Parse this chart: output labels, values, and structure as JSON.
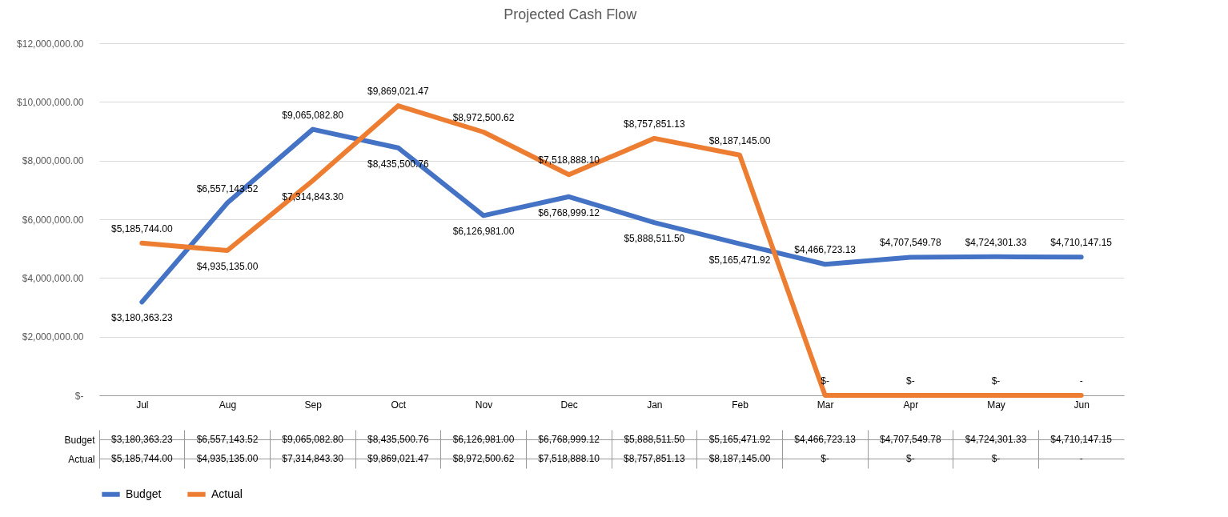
{
  "chart_data": {
    "type": "line",
    "title": "Projected Cash Flow",
    "categories": [
      "Jul",
      "Aug",
      "Sep",
      "Oct",
      "Nov",
      "Dec",
      "Jan",
      "Feb",
      "Mar",
      "Apr",
      "May",
      "Jun"
    ],
    "series": [
      {
        "name": "Budget",
        "color": "#4472c4",
        "values": [
          3180363.23,
          6557143.52,
          9065082.8,
          8435500.76,
          6126981.0,
          6768999.12,
          5888511.5,
          5165471.92,
          4466723.13,
          4707549.78,
          4724301.33,
          4710147.15
        ],
        "value_labels": [
          "$3,180,363.23",
          "$6,557,143.52",
          "$9,065,082.80",
          "$8,435,500.76",
          "$6,126,981.00",
          "$6,768,999.12",
          "$5,888,511.50",
          "$5,165,471.92",
          "$4,466,723.13",
          "$4,707,549.78",
          "$4,724,301.33",
          "$4,710,147.15"
        ]
      },
      {
        "name": "Actual",
        "color": "#ed7d31",
        "values": [
          5185744.0,
          4935135.0,
          7314843.3,
          9869021.47,
          8972500.62,
          7518888.1,
          8757851.13,
          8187145.0,
          0,
          0,
          0,
          0
        ],
        "value_labels": [
          "$5,185,744.00",
          "$4,935,135.00",
          "$7,314,843.30",
          "$9,869,021.47",
          "$8,972,500.62",
          "$7,518,888.10",
          "$8,757,851.13",
          "$8,187,145.00",
          "$-",
          "$-",
          "$-",
          "-"
        ]
      }
    ],
    "ylim": [
      0,
      12000000
    ],
    "yticks": [
      {
        "value": 0,
        "label": "$-"
      },
      {
        "value": 2000000,
        "label": "$2,000,000.00"
      },
      {
        "value": 4000000,
        "label": "$4,000,000.00"
      },
      {
        "value": 6000000,
        "label": "$6,000,000.00"
      },
      {
        "value": 8000000,
        "label": "$8,000,000.00"
      },
      {
        "value": 10000000,
        "label": "$10,000,000.00"
      },
      {
        "value": 12000000,
        "label": "$12,000,000.00"
      }
    ],
    "grid": "y",
    "legend": "bottom",
    "marker": "none",
    "line_style": "solid"
  }
}
